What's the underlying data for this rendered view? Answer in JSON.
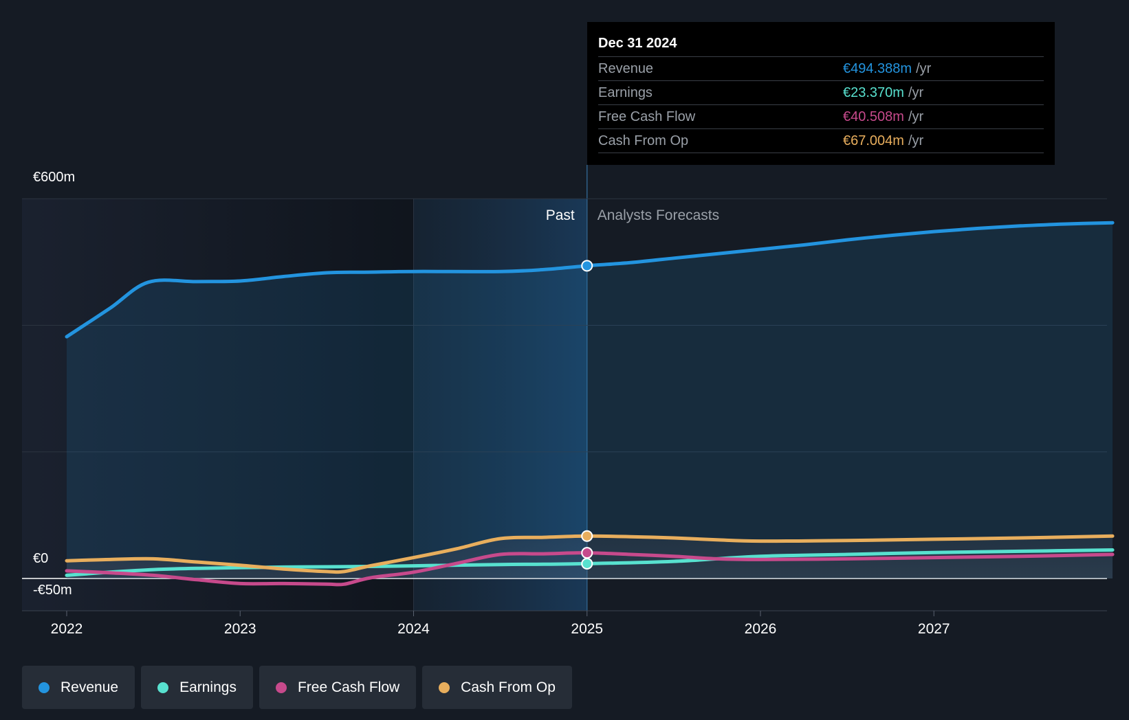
{
  "tooltip": {
    "date": "Dec 31 2024",
    "rows": [
      {
        "label": "Revenue",
        "value": "€494.388m",
        "unit": "/yr",
        "color": "#2394df"
      },
      {
        "label": "Earnings",
        "value": "€23.370m",
        "unit": "/yr",
        "color": "#58e1cf"
      },
      {
        "label": "Free Cash Flow",
        "value": "€40.508m",
        "unit": "/yr",
        "color": "#c74a8c"
      },
      {
        "label": "Cash From Op",
        "value": "€67.004m",
        "unit": "/yr",
        "color": "#e8ae5d"
      }
    ]
  },
  "legend": [
    {
      "label": "Revenue",
      "color": "#2394df"
    },
    {
      "label": "Earnings",
      "color": "#58e1cf"
    },
    {
      "label": "Free Cash Flow",
      "color": "#c74a8c"
    },
    {
      "label": "Cash From Op",
      "color": "#e8ae5d"
    }
  ],
  "chart_data": {
    "type": "line",
    "y_tick_labels": [
      "€600m",
      "€0",
      "-€50m"
    ],
    "ylim": [
      -50,
      600
    ],
    "x_tick_labels": [
      "2022",
      "2023",
      "2024",
      "2025",
      "2026",
      "2027"
    ],
    "xlim": [
      2022.0,
      2028.03
    ],
    "past_label": "Past",
    "forecast_label": "Analysts Forecasts",
    "divider_x": 2025.0,
    "highlight_start_x": 2024.0,
    "series": [
      {
        "name": "Revenue",
        "color": "#2394df",
        "x": [
          2022.0,
          2022.25,
          2022.47,
          2022.75,
          2023.0,
          2023.25,
          2023.5,
          2023.75,
          2024.0,
          2024.5,
          2024.75,
          2025.0,
          2025.25,
          2025.5,
          2025.75,
          2026.0,
          2026.25,
          2026.5,
          2026.75,
          2027.0,
          2027.25,
          2027.5,
          2027.75,
          2028.03
        ],
        "y": [
          382,
          427,
          468,
          469,
          470,
          477,
          483,
          484,
          485,
          485,
          488,
          494,
          499,
          506,
          513,
          520,
          527,
          535,
          542,
          548,
          553,
          557,
          560,
          562
        ]
      },
      {
        "name": "Earnings",
        "color": "#58e1cf",
        "x": [
          2022.0,
          2022.25,
          2022.5,
          2022.75,
          2023.0,
          2023.25,
          2023.5,
          2023.75,
          2024.0,
          2024.5,
          2024.75,
          2025.0,
          2025.5,
          2026.0,
          2026.5,
          2027.0,
          2027.5,
          2028.03
        ],
        "y": [
          5,
          10,
          14,
          16,
          17,
          18,
          18.5,
          19,
          20,
          22,
          22.5,
          23.4,
          27,
          35,
          38,
          41,
          43,
          45
        ]
      },
      {
        "name": "Free Cash Flow",
        "color": "#c74a8c",
        "x": [
          2022.0,
          2022.25,
          2022.5,
          2022.75,
          2023.0,
          2023.25,
          2023.5,
          2023.6,
          2023.75,
          2024.0,
          2024.25,
          2024.5,
          2024.75,
          2025.0,
          2025.25,
          2025.5,
          2025.75,
          2026.0,
          2026.5,
          2027.0,
          2027.5,
          2028.03
        ],
        "y": [
          12,
          9,
          5,
          -2,
          -8,
          -8,
          -9,
          -9,
          1,
          10,
          24,
          38,
          39,
          40.5,
          38,
          35,
          31,
          30,
          31,
          33,
          35,
          38
        ]
      },
      {
        "name": "Cash From Op",
        "color": "#e8ae5d",
        "x": [
          2022.0,
          2022.25,
          2022.5,
          2022.75,
          2023.0,
          2023.25,
          2023.5,
          2023.6,
          2023.75,
          2024.0,
          2024.25,
          2024.5,
          2024.75,
          2025.0,
          2025.25,
          2025.5,
          2025.75,
          2026.0,
          2026.5,
          2027.0,
          2027.5,
          2028.03
        ],
        "y": [
          28,
          30,
          31,
          26,
          21,
          15,
          11,
          11,
          20,
          33,
          47,
          63,
          65,
          67,
          66,
          64,
          61,
          59,
          60,
          62,
          64,
          67
        ]
      }
    ]
  }
}
